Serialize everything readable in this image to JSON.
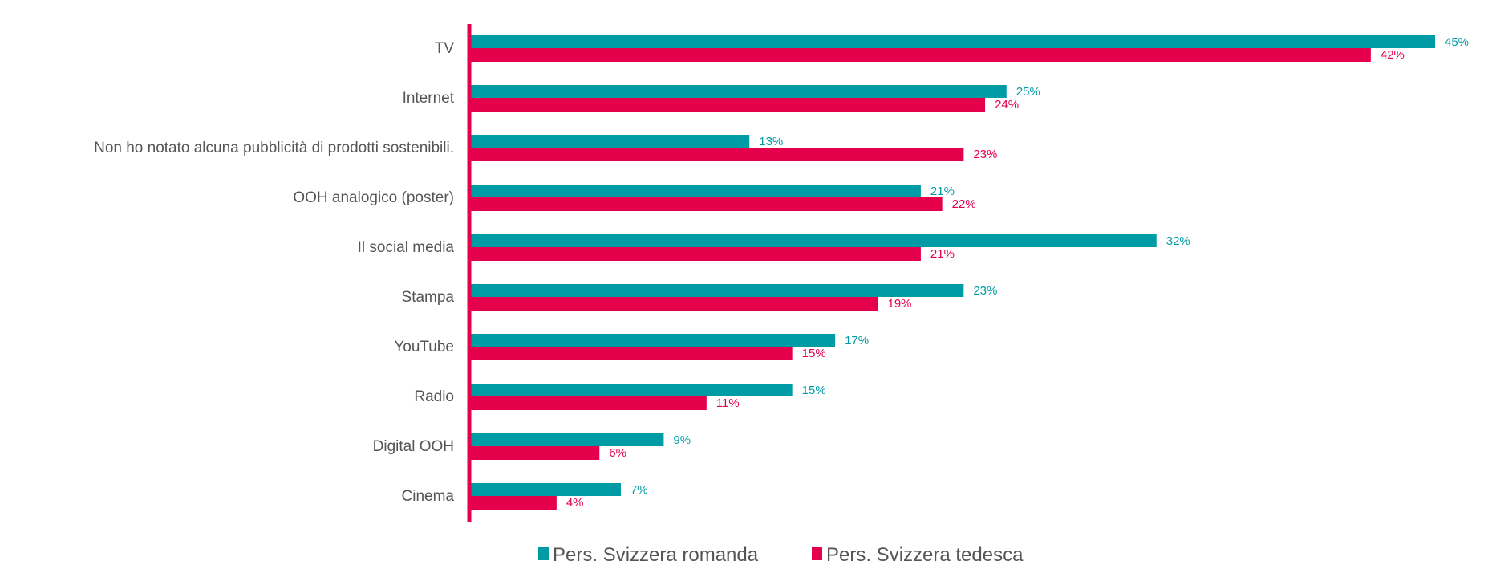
{
  "chart_data": {
    "type": "bar",
    "orientation": "horizontal",
    "title": "",
    "xlabel": "",
    "ylabel": "",
    "xlim": [
      0,
      45
    ],
    "grid": false,
    "legend_position": "bottom-center",
    "categories": [
      "TV",
      "Internet",
      "Non ho notato alcuna pubblicità di prodotti sostenibili.",
      "OOH analogico (poster)",
      "Il social media",
      "Stampa",
      "YouTube",
      "Radio",
      "Digital OOH",
      "Cinema"
    ],
    "series": [
      {
        "name": "Pers. Svizzera romanda",
        "color": "#009CA6",
        "values": [
          45,
          25,
          13,
          21,
          32,
          23,
          17,
          15,
          9,
          7
        ],
        "labels": [
          "45%",
          "25%",
          "13%",
          "21%",
          "32%",
          "23%",
          "17%",
          "15%",
          "9%",
          "7%"
        ]
      },
      {
        "name": "Pers. Svizzera tedesca",
        "color": "#E4004B",
        "values": [
          42,
          24,
          23,
          22,
          21,
          19,
          15,
          11,
          6,
          4
        ],
        "labels": [
          "42%",
          "24%",
          "23%",
          "22%",
          "21%",
          "19%",
          "15%",
          "11%",
          "6%",
          "4%"
        ]
      }
    ],
    "axis_color": "#E4004B"
  }
}
